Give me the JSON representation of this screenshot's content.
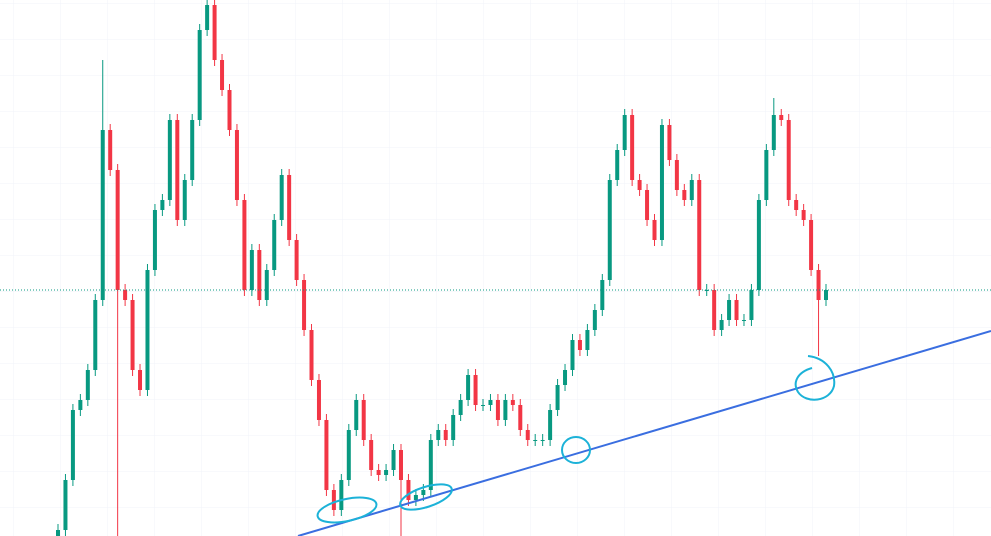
{
  "chart_data": {
    "type": "candlestick",
    "up_color": "#089981",
    "down_color": "#f23645",
    "ylim": [
      0,
      536
    ],
    "categories": [
      null,
      null,
      null,
      null,
      null,
      null,
      null,
      null,
      null,
      null,
      null,
      null,
      null,
      null,
      null,
      null,
      null,
      null,
      null,
      null,
      null,
      null,
      null,
      null,
      null,
      null,
      null,
      null,
      null,
      null,
      null,
      null,
      null,
      null,
      null,
      null,
      null,
      null,
      null,
      null,
      null,
      null,
      null,
      null,
      null,
      null,
      null,
      null,
      null,
      null,
      null,
      null,
      null,
      null,
      null,
      null,
      null,
      null,
      null,
      null,
      null,
      null,
      null,
      null,
      null,
      null,
      null,
      null,
      null,
      null,
      null,
      null,
      null,
      null,
      null,
      null,
      null,
      null,
      null,
      null,
      null,
      null,
      null,
      null,
      null,
      null,
      null,
      null,
      null,
      null,
      null,
      null,
      null,
      null,
      null,
      null,
      null,
      null,
      null,
      null,
      null,
      null,
      null,
      null
    ],
    "open": [
      0,
      6,
      56,
      126,
      136,
      166,
      236,
      406,
      366,
      246,
      236,
      166,
      146,
      266,
      326,
      336,
      416,
      316,
      356,
      416,
      506,
      531,
      476,
      446,
      406,
      336,
      246,
      286,
      236,
      266,
      316,
      361,
      296,
      256,
      206,
      156,
      116,
      46,
      26,
      56,
      106,
      136,
      96,
      66,
      61,
      66,
      86,
      56,
      36,
      41,
      46,
      96,
      106,
      96,
      121,
      136,
      161,
      131,
      131,
      136,
      116,
      136,
      131,
      106,
      96,
      96,
      96,
      126,
      151,
      166,
      196,
      186,
      206,
      226,
      256,
      356,
      386,
      421,
      356,
      346,
      316,
      296,
      411,
      376,
      346,
      336,
      356,
      246,
      246,
      206,
      216,
      236,
      216,
      216,
      246,
      336,
      386,
      421,
      416,
      336,
      326,
      316,
      266,
      236
    ],
    "high": [
      12,
      62,
      132,
      142,
      172,
      242,
      476,
      412,
      372,
      252,
      242,
      172,
      272,
      332,
      342,
      422,
      422,
      362,
      422,
      512,
      536,
      536,
      482,
      452,
      412,
      342,
      292,
      292,
      272,
      322,
      367,
      367,
      302,
      262,
      212,
      162,
      122,
      52,
      62,
      112,
      142,
      142,
      102,
      72,
      72,
      92,
      92,
      62,
      47,
      52,
      102,
      112,
      112,
      127,
      142,
      167,
      167,
      137,
      142,
      142,
      142,
      142,
      137,
      112,
      102,
      102,
      132,
      157,
      172,
      202,
      202,
      212,
      232,
      262,
      362,
      392,
      427,
      427,
      362,
      352,
      322,
      417,
      417,
      382,
      352,
      362,
      362,
      252,
      252,
      222,
      242,
      242,
      222,
      252,
      342,
      392,
      438,
      427,
      422,
      342,
      332,
      322,
      272,
      252
    ],
    "low": [
      0,
      0,
      50,
      120,
      130,
      160,
      230,
      360,
      0,
      230,
      160,
      140,
      140,
      260,
      320,
      330,
      310,
      310,
      350,
      410,
      500,
      470,
      440,
      400,
      330,
      240,
      240,
      230,
      230,
      260,
      310,
      290,
      250,
      200,
      150,
      110,
      40,
      20,
      20,
      50,
      100,
      90,
      60,
      55,
      55,
      60,
      0,
      30,
      30,
      35,
      40,
      90,
      90,
      90,
      115,
      130,
      125,
      125,
      125,
      110,
      110,
      125,
      100,
      90,
      90,
      90,
      90,
      120,
      145,
      160,
      180,
      180,
      200,
      220,
      250,
      350,
      380,
      350,
      340,
      310,
      290,
      290,
      370,
      340,
      330,
      330,
      240,
      240,
      200,
      200,
      210,
      210,
      210,
      210,
      240,
      330,
      380,
      410,
      330,
      320,
      310,
      260,
      180,
      230
    ],
    "close": [
      6,
      56,
      126,
      136,
      166,
      236,
      406,
      366,
      246,
      236,
      166,
      146,
      266,
      326,
      336,
      416,
      316,
      356,
      416,
      506,
      531,
      476,
      446,
      406,
      336,
      246,
      286,
      236,
      266,
      316,
      361,
      296,
      256,
      206,
      156,
      116,
      46,
      26,
      56,
      106,
      136,
      96,
      66,
      61,
      66,
      86,
      56,
      36,
      41,
      46,
      96,
      106,
      96,
      121,
      136,
      161,
      131,
      131,
      136,
      116,
      136,
      131,
      106,
      96,
      96,
      96,
      126,
      151,
      166,
      196,
      186,
      206,
      226,
      256,
      356,
      386,
      421,
      356,
      346,
      316,
      296,
      411,
      376,
      346,
      336,
      356,
      246,
      246,
      206,
      216,
      236,
      216,
      216,
      246,
      336,
      386,
      421,
      416,
      336,
      326,
      316,
      266,
      236,
      246
    ],
    "grid": true
  }
}
